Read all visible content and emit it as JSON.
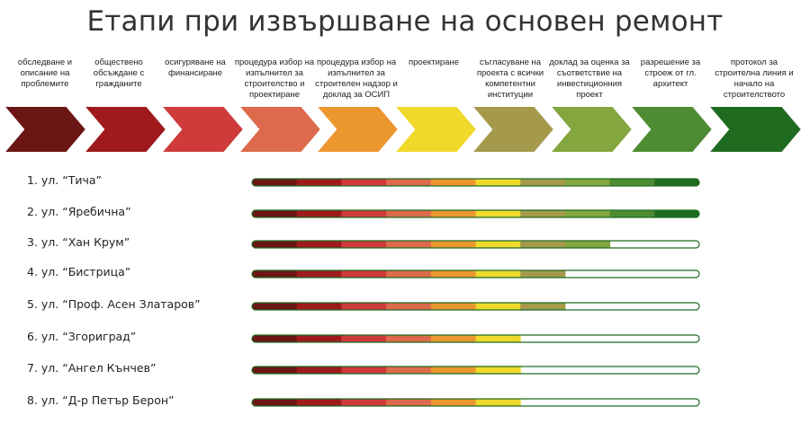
{
  "title": "Етапи при извършване на основен ремонт",
  "stages": [
    {
      "label": "обследване и описание на проблемите",
      "color": "#6b1515"
    },
    {
      "label": "обществено обсъждане с гражданите",
      "color": "#9e1a1c"
    },
    {
      "label": "осигуряване на финансиране",
      "color": "#cf3a3a"
    },
    {
      "label": "процедура избор на изпълнител за строителство и проектиране",
      "color": "#dd6a4c"
    },
    {
      "label": "процедура избор на изпълнител за строителен надзор и доклад за ОСИП",
      "color": "#ec9630"
    },
    {
      "label": "проектиране",
      "color": "#f0d92a"
    },
    {
      "label": "съгласуване на проекта с всички компетентни институции",
      "color": "#a59a4c"
    },
    {
      "label": "доклад за оценка за съответствие на инвестиционния проект",
      "color": "#84a63e"
    },
    {
      "label": "разрешение за строеж от гл. архитект",
      "color": "#4e8b32"
    },
    {
      "label": "протокол за строителна линия и начало на строителството",
      "color": "#1f6b20"
    }
  ],
  "streets": [
    {
      "name": "1. ул. “Тича”",
      "completed_stages": 10
    },
    {
      "name": "2. ул. “Яребична”",
      "completed_stages": 10
    },
    {
      "name": "3. ул. “Хан Крум”",
      "completed_stages": 8
    },
    {
      "name": "4. ул. “Бистрица”",
      "completed_stages": 7
    },
    {
      "name": "5. ул. “Проф. Асен Златаров”",
      "completed_stages": 7
    },
    {
      "name": "6. ул. “Згориград”",
      "completed_stages": 6
    },
    {
      "name": "7. ул. “Ангел Кънчев”",
      "completed_stages": 6
    },
    {
      "name": "8. ул. “Д-р Петър Берон”",
      "completed_stages": 6
    }
  ]
}
